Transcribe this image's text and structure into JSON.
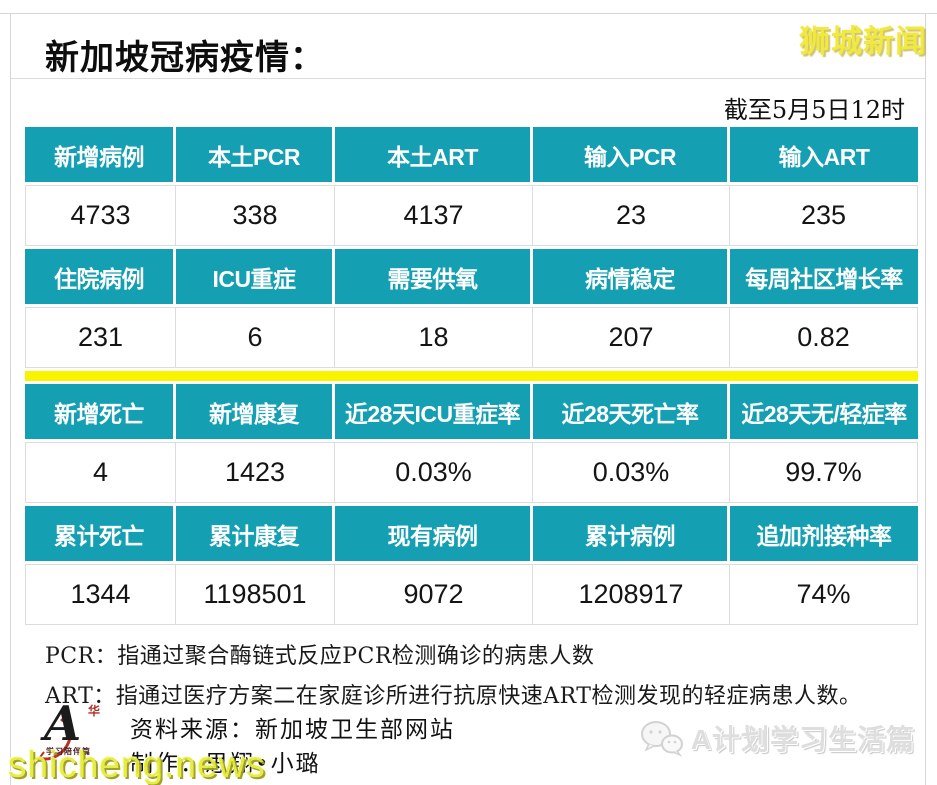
{
  "page": {
    "brand": "狮城新闻",
    "title": "新加坡冠病疫情：",
    "as_of": "截至5月5日12时"
  },
  "colors": {
    "header_teal": "#149FB2",
    "divider_yellow": "#F8F400",
    "brand_yellow": "#F2E93F",
    "watermark_yellow": "#E6EC3A"
  },
  "table": {
    "sections": [
      {
        "headers": [
          "新增病例",
          "本土PCR",
          "本土ART",
          "输入PCR",
          "输入ART"
        ],
        "values": [
          "4733",
          "338",
          "4137",
          "23",
          "235"
        ]
      },
      {
        "headers": [
          "住院病例",
          "ICU重症",
          "需要供氧",
          "病情稳定",
          "每周社区增长率"
        ],
        "values": [
          "231",
          "6",
          "18",
          "207",
          "0.82"
        ],
        "divider_after": true
      },
      {
        "headers": [
          "新增死亡",
          "新增康复",
          "近28天ICU重症率",
          "近28天死亡率",
          "近28天无/轻症率"
        ],
        "values": [
          "4",
          "1423",
          "0.03%",
          "0.03%",
          "99.7%"
        ]
      },
      {
        "headers": [
          "累计死亡",
          "累计康复",
          "现有病例",
          "累计病例",
          "追加剂接种率"
        ],
        "values": [
          "1344",
          "1198501",
          "9072",
          "1208917",
          "74%"
        ]
      }
    ]
  },
  "notes": [
    "PCR：指通过聚合酶链式反应PCR检测确诊的病患人数",
    "ART：指通过医疗方案二在家庭诊所进行抗原快速ART检测发现的轻症病患人数。"
  ],
  "footer": {
    "source_line": "资料来源：新加坡卫生部网站",
    "producer_line": "制作：思翔•小璐",
    "logo_letter": "A",
    "logo_seal": "华",
    "logo_caption": "学习陪伴篇",
    "watermark_left": "shicheng.news",
    "watermark_right": "A计划学习生活篇"
  }
}
